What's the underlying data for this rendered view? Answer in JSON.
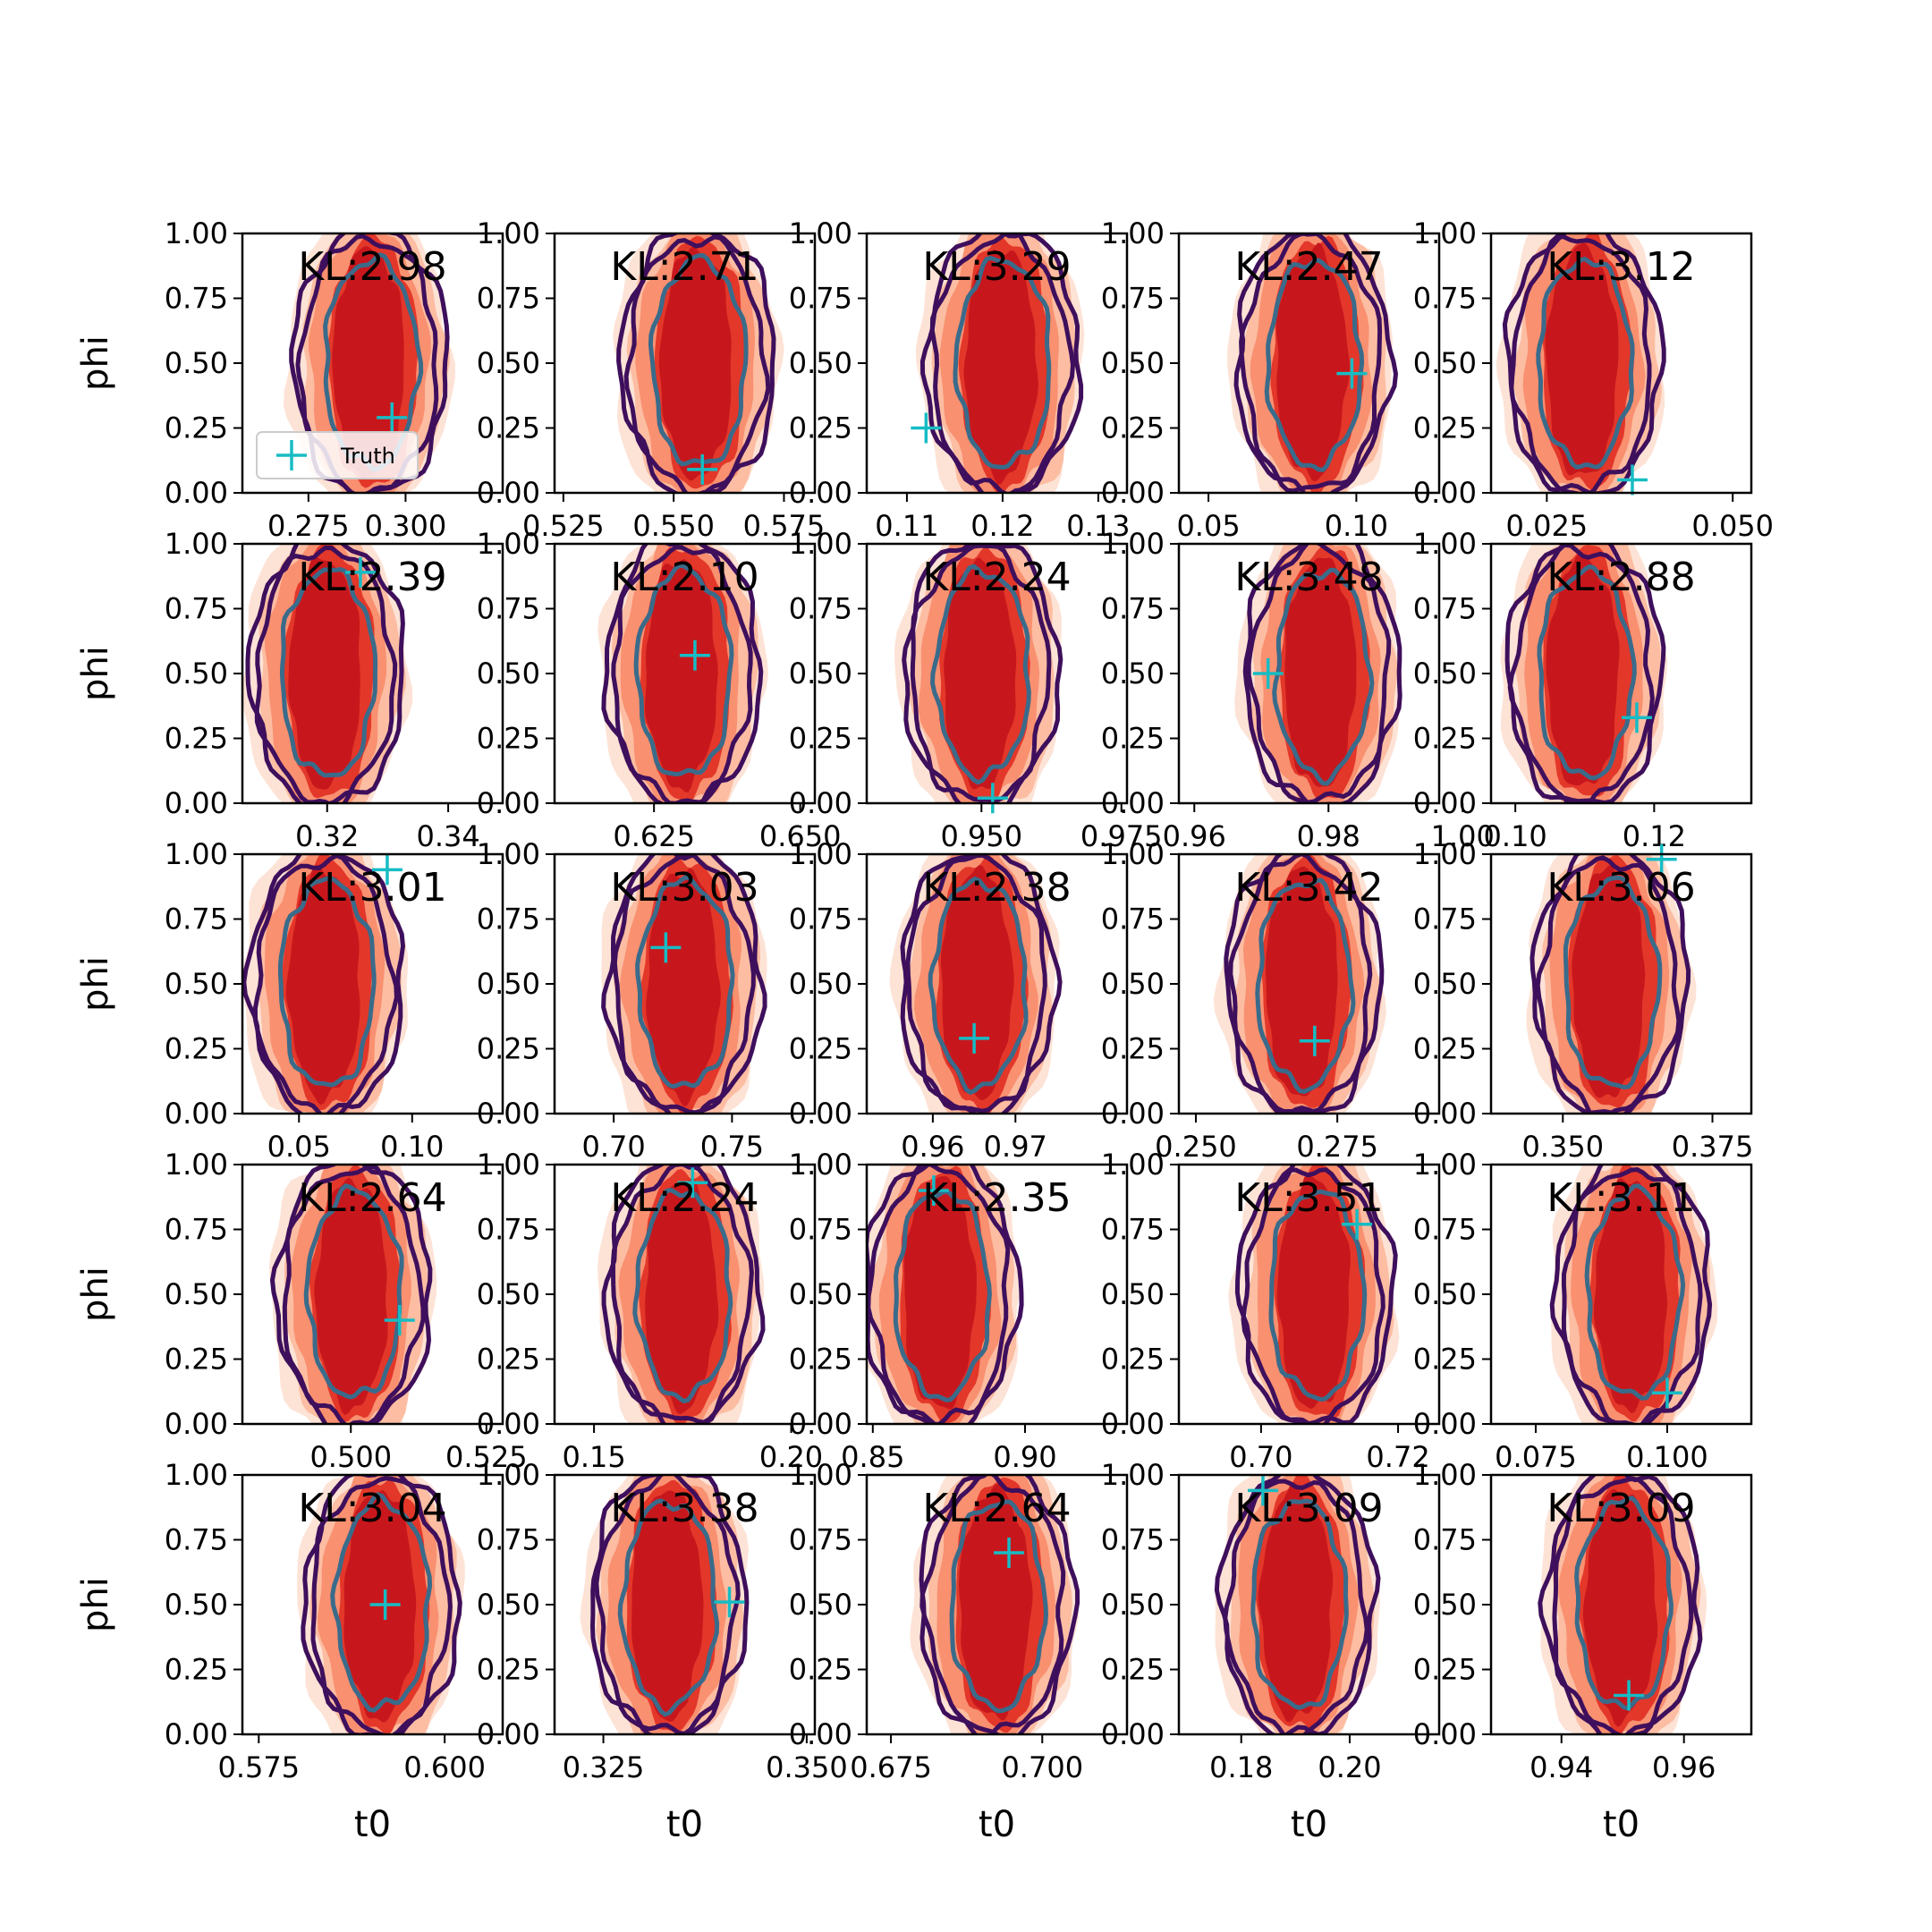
{
  "chart_data": {
    "type": "contour-grid",
    "rows": 5,
    "cols": 5,
    "xlabel": "t0",
    "ylabel": "phi",
    "ylim": [
      0,
      1
    ],
    "yticks": [
      "0.00",
      "0.25",
      "0.50",
      "0.75",
      "1.00"
    ],
    "legend": {
      "label": "Truth",
      "placement": "lower-left",
      "panel": 0
    },
    "colors": {
      "fill_levels": [
        "#fde3d6",
        "#fcbda2",
        "#f99070",
        "#e3372a",
        "#c8171c"
      ],
      "outer_contour": "#3e0f5c",
      "inner_contour": "#3a6b8a",
      "truth_marker": "#17bcc4"
    },
    "panels": [
      {
        "kl": "KL:2.98",
        "xlim": [
          0.258,
          0.325
        ],
        "xticks": [
          {
            "v": 0.275,
            "l": "0.275"
          },
          {
            "v": 0.3,
            "l": "0.300"
          }
        ],
        "center": 0.291,
        "truth": {
          "t0": 0.2965,
          "phi": 0.29
        }
      },
      {
        "kl": "KL:2.71",
        "xlim": [
          0.523,
          0.582
        ],
        "xticks": [
          {
            "v": 0.525,
            "l": "0.525"
          },
          {
            "v": 0.55,
            "l": "0.550"
          },
          {
            "v": 0.575,
            "l": "0.575"
          }
        ],
        "center": 0.5555,
        "truth": {
          "t0": 0.5565,
          "phi": 0.09
        }
      },
      {
        "kl": "KL:3.29",
        "xlim": [
          0.1058,
          0.133
        ],
        "xticks": [
          {
            "v": 0.11,
            "l": "0.11"
          },
          {
            "v": 0.12,
            "l": "0.12"
          },
          {
            "v": 0.13,
            "l": "0.13"
          }
        ],
        "center": 0.12,
        "truth": {
          "t0": 0.112,
          "phi": 0.25
        }
      },
      {
        "kl": "KL:2.47",
        "xlim": [
          0.04,
          0.128
        ],
        "xticks": [
          {
            "v": 0.05,
            "l": "0.05"
          },
          {
            "v": 0.1,
            "l": "0.10"
          }
        ],
        "center": 0.0855,
        "truth": {
          "t0": 0.0985,
          "phi": 0.46
        }
      },
      {
        "kl": "KL:3.12",
        "xlim": [
          0.0175,
          0.0525
        ],
        "xticks": [
          {
            "v": 0.025,
            "l": "0.025"
          },
          {
            "v": 0.05,
            "l": "0.050"
          }
        ],
        "center": 0.03,
        "truth": {
          "t0": 0.0365,
          "phi": 0.05
        }
      },
      {
        "kl": "KL:2.39",
        "xlim": [
          0.306,
          0.349
        ],
        "xticks": [
          {
            "v": 0.32,
            "l": "0.32"
          },
          {
            "v": 0.34,
            "l": "0.34"
          }
        ],
        "center": 0.32,
        "truth": {
          "t0": 0.3255,
          "phi": 0.89
        }
      },
      {
        "kl": "KL:2.10",
        "xlim": [
          0.608,
          0.6525
        ],
        "xticks": [
          {
            "v": 0.625,
            "l": "0.625"
          },
          {
            "v": 0.65,
            "l": "0.650"
          }
        ],
        "center": 0.63,
        "truth": {
          "t0": 0.632,
          "phi": 0.57
        }
      },
      {
        "kl": "KL:2.24",
        "xlim": [
          0.9295,
          0.976
        ],
        "xticks": [
          {
            "v": 0.95,
            "l": "0.950"
          },
          {
            "v": 0.975,
            "l": "0.975"
          }
        ],
        "center": 0.95,
        "truth": {
          "t0": 0.952,
          "phi": 0.02
        }
      },
      {
        "kl": "KL:3.48",
        "xlim": [
          0.9577,
          0.9965
        ],
        "xticks": [
          {
            "v": 0.96,
            "l": "0.96"
          },
          {
            "v": 0.98,
            "l": "0.98"
          },
          {
            "v": 1.0,
            "l": "1.00"
          }
        ],
        "center": 0.979,
        "truth": {
          "t0": 0.971,
          "phi": 0.5
        }
      },
      {
        "kl": "KL:2.88",
        "xlim": [
          0.0965,
          0.134
        ],
        "xticks": [
          {
            "v": 0.1,
            "l": "0.10"
          },
          {
            "v": 0.12,
            "l": "0.12"
          }
        ],
        "center": 0.11,
        "truth": {
          "t0": 0.1175,
          "phi": 0.33
        }
      },
      {
        "kl": "KL:3.01",
        "xlim": [
          0.025,
          0.14
        ],
        "xticks": [
          {
            "v": 0.05,
            "l": "0.05"
          },
          {
            "v": 0.1,
            "l": "0.10"
          }
        ],
        "center": 0.062,
        "truth": {
          "t0": 0.089,
          "phi": 0.94
        }
      },
      {
        "kl": "KL:3.03",
        "xlim": [
          0.675,
          0.785
        ],
        "xticks": [
          {
            "v": 0.7,
            "l": "0.70"
          },
          {
            "v": 0.75,
            "l": "0.75"
          }
        ],
        "center": 0.73,
        "truth": {
          "t0": 0.722,
          "phi": 0.64
        }
      },
      {
        "kl": "KL:2.38",
        "xlim": [
          0.952,
          0.9835
        ],
        "xticks": [
          {
            "v": 0.96,
            "l": "0.96"
          },
          {
            "v": 0.97,
            "l": "0.97"
          }
        ],
        "center": 0.9655,
        "truth": {
          "t0": 0.965,
          "phi": 0.29
        }
      },
      {
        "kl": "KL:3.42",
        "xlim": [
          0.247,
          0.293
        ],
        "xticks": [
          {
            "v": 0.25,
            "l": "0.250"
          },
          {
            "v": 0.275,
            "l": "0.275"
          }
        ],
        "center": 0.269,
        "truth": {
          "t0": 0.271,
          "phi": 0.28
        }
      },
      {
        "kl": "KL:3.06",
        "xlim": [
          0.338,
          0.3815
        ],
        "xticks": [
          {
            "v": 0.35,
            "l": "0.350"
          },
          {
            "v": 0.375,
            "l": "0.375"
          }
        ],
        "center": 0.358,
        "truth": {
          "t0": 0.3665,
          "phi": 0.98
        }
      },
      {
        "kl": "KL:2.64",
        "xlim": [
          0.48,
          0.528
        ],
        "xticks": [
          {
            "v": 0.5,
            "l": "0.500"
          },
          {
            "v": 0.525,
            "l": "0.525"
          }
        ],
        "center": 0.5005,
        "truth": {
          "t0": 0.509,
          "phi": 0.4
        }
      },
      {
        "kl": "KL:2.24",
        "xlim": [
          0.14,
          0.206
        ],
        "xticks": [
          {
            "v": 0.15,
            "l": "0.15"
          },
          {
            "v": 0.2,
            "l": "0.20"
          }
        ],
        "center": 0.1725,
        "truth": {
          "t0": 0.175,
          "phi": 0.93
        }
      },
      {
        "kl": "KL:2.35",
        "xlim": [
          0.848,
          0.9335
        ],
        "xticks": [
          {
            "v": 0.85,
            "l": "0.85"
          },
          {
            "v": 0.9,
            "l": "0.90"
          }
        ],
        "center": 0.8725,
        "truth": {
          "t0": 0.87,
          "phi": 0.9
        }
      },
      {
        "kl": "KL:3.51",
        "xlim": [
          0.688,
          0.726
        ],
        "xticks": [
          {
            "v": 0.7,
            "l": "0.70"
          },
          {
            "v": 0.72,
            "l": "0.72"
          }
        ],
        "center": 0.708,
        "truth": {
          "t0": 0.714,
          "phi": 0.77
        }
      },
      {
        "kl": "KL:3.11",
        "xlim": [
          0.0665,
          0.116
        ],
        "xticks": [
          {
            "v": 0.075,
            "l": "0.075"
          },
          {
            "v": 0.1,
            "l": "0.100"
          }
        ],
        "center": 0.0935,
        "truth": {
          "t0": 0.1,
          "phi": 0.12
        }
      },
      {
        "kl": "KL:3.04",
        "xlim": [
          0.5728,
          0.6078
        ],
        "xticks": [
          {
            "v": 0.575,
            "l": "0.575"
          },
          {
            "v": 0.6,
            "l": "0.600"
          }
        ],
        "center": 0.5915,
        "truth": {
          "t0": 0.592,
          "phi": 0.5
        }
      },
      {
        "kl": "KL:3.38",
        "xlim": [
          0.319,
          0.351
        ],
        "xticks": [
          {
            "v": 0.325,
            "l": "0.325"
          },
          {
            "v": 0.35,
            "l": "0.350"
          }
        ],
        "center": 0.333,
        "truth": {
          "t0": 0.3405,
          "phi": 0.51
        }
      },
      {
        "kl": "KL:2.64",
        "xlim": [
          0.671,
          0.714
        ],
        "xticks": [
          {
            "v": 0.675,
            "l": "0.675"
          },
          {
            "v": 0.7,
            "l": "0.700"
          }
        ],
        "center": 0.6925,
        "truth": {
          "t0": 0.6945,
          "phi": 0.7
        }
      },
      {
        "kl": "KL:3.09",
        "xlim": [
          0.1685,
          0.2165
        ],
        "xticks": [
          {
            "v": 0.18,
            "l": "0.18"
          },
          {
            "v": 0.2,
            "l": "0.20"
          }
        ],
        "center": 0.1905,
        "truth": {
          "t0": 0.184,
          "phi": 0.94
        }
      },
      {
        "kl": "KL:3.09",
        "xlim": [
          0.9285,
          0.971
        ],
        "xticks": [
          {
            "v": 0.94,
            "l": "0.94"
          },
          {
            "v": 0.96,
            "l": "0.96"
          }
        ],
        "center": 0.95,
        "truth": {
          "t0": 0.951,
          "phi": 0.15
        }
      }
    ]
  }
}
